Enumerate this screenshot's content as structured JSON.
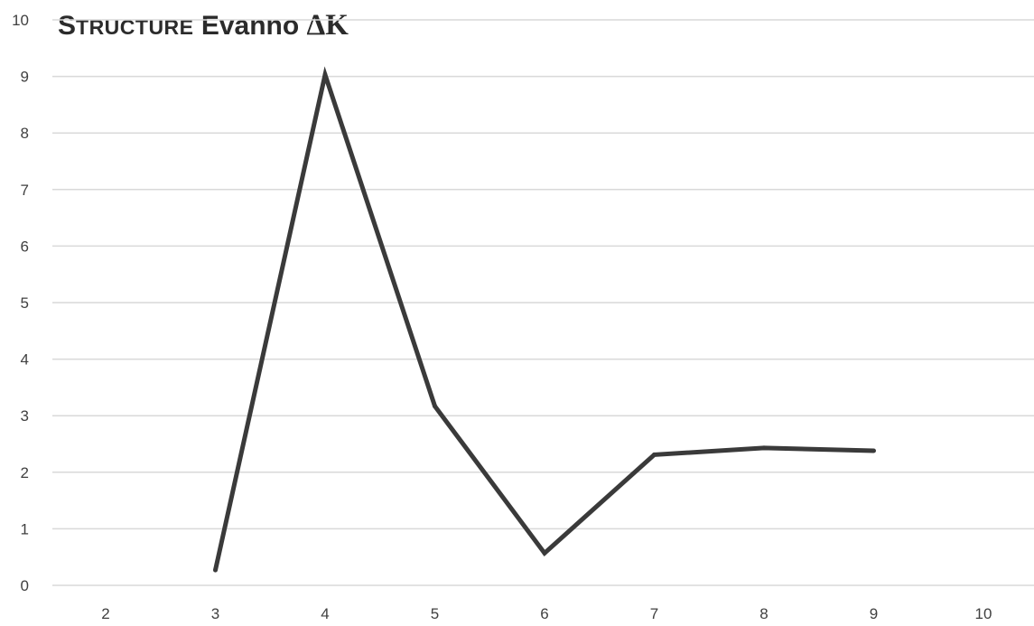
{
  "chart_data": {
    "type": "line",
    "title": {
      "lead": "S",
      "smallcaps": "TRUCTURE",
      "rest": " Evanno ",
      "delta": "ΔK"
    },
    "xlabel": "",
    "ylabel": "",
    "categories": [
      "2",
      "3",
      "4",
      "5",
      "6",
      "7",
      "8",
      "9",
      "10"
    ],
    "series": [
      {
        "values": [
          null,
          0.27,
          9.03,
          3.17,
          0.57,
          2.31,
          2.43,
          2.38,
          null
        ],
        "color": "#3a3a3a"
      }
    ],
    "ylim": [
      0,
      10
    ],
    "yticks": [
      "0",
      "1",
      "2",
      "3",
      "4",
      "5",
      "6",
      "7",
      "8",
      "9",
      "10"
    ],
    "grid": true,
    "legend": "none"
  }
}
